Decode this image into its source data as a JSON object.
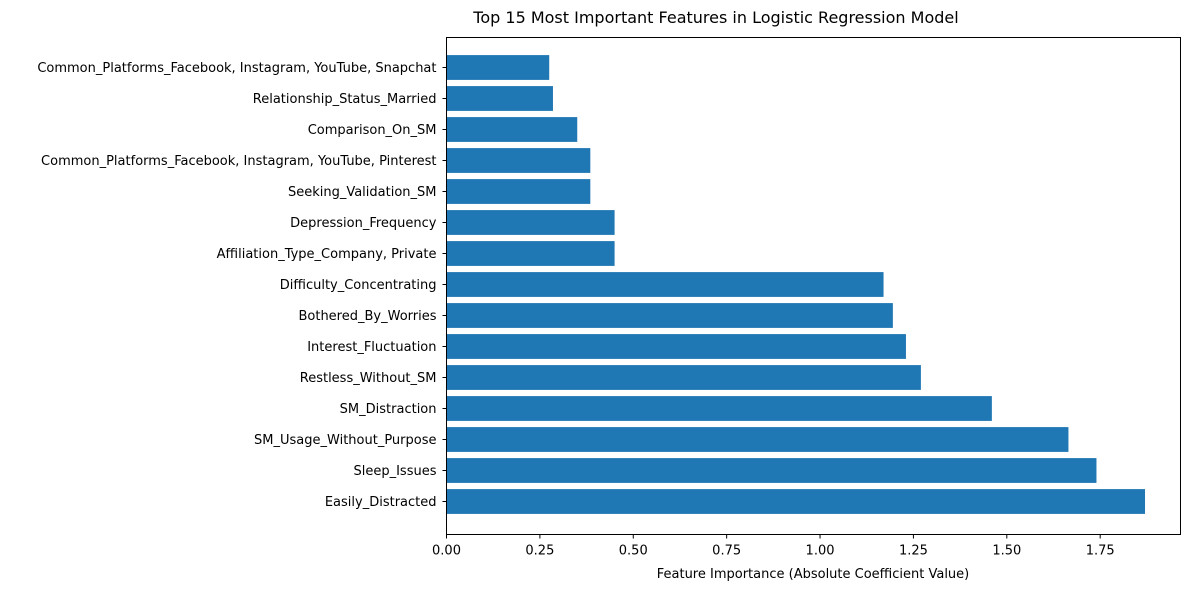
{
  "chart_data": {
    "type": "bar",
    "orientation": "horizontal",
    "title": "Top 15 Most Important Features in Logistic Regression Model",
    "xlabel": "Feature Importance (Absolute Coefficient Value)",
    "ylabel": "",
    "xlim": [
      0,
      1.965
    ],
    "xticks": [
      "0.00",
      "0.25",
      "0.50",
      "0.75",
      "1.00",
      "1.25",
      "1.50",
      "1.75"
    ],
    "bar_color": "#1f77b4",
    "grid": false,
    "categories": [
      "Easily_Distracted",
      "Sleep_Issues",
      "SM_Usage_Without_Purpose",
      "SM_Distraction",
      "Restless_Without_SM",
      "Interest_Fluctuation",
      "Bothered_By_Worries",
      "Difficulty_Concentrating",
      "Affiliation_Type_Company, Private",
      "Depression_Frequency",
      "Seeking_Validation_SM",
      "Common_Platforms_Facebook, Instagram, YouTube, Pinterest",
      "Comparison_On_SM",
      "Relationship_Status_Married",
      "Common_Platforms_Facebook, Instagram, YouTube, Snapchat"
    ],
    "values": [
      1.87,
      1.74,
      1.665,
      1.46,
      1.27,
      1.23,
      1.195,
      1.17,
      0.45,
      0.45,
      0.385,
      0.385,
      0.35,
      0.285,
      0.275
    ]
  }
}
